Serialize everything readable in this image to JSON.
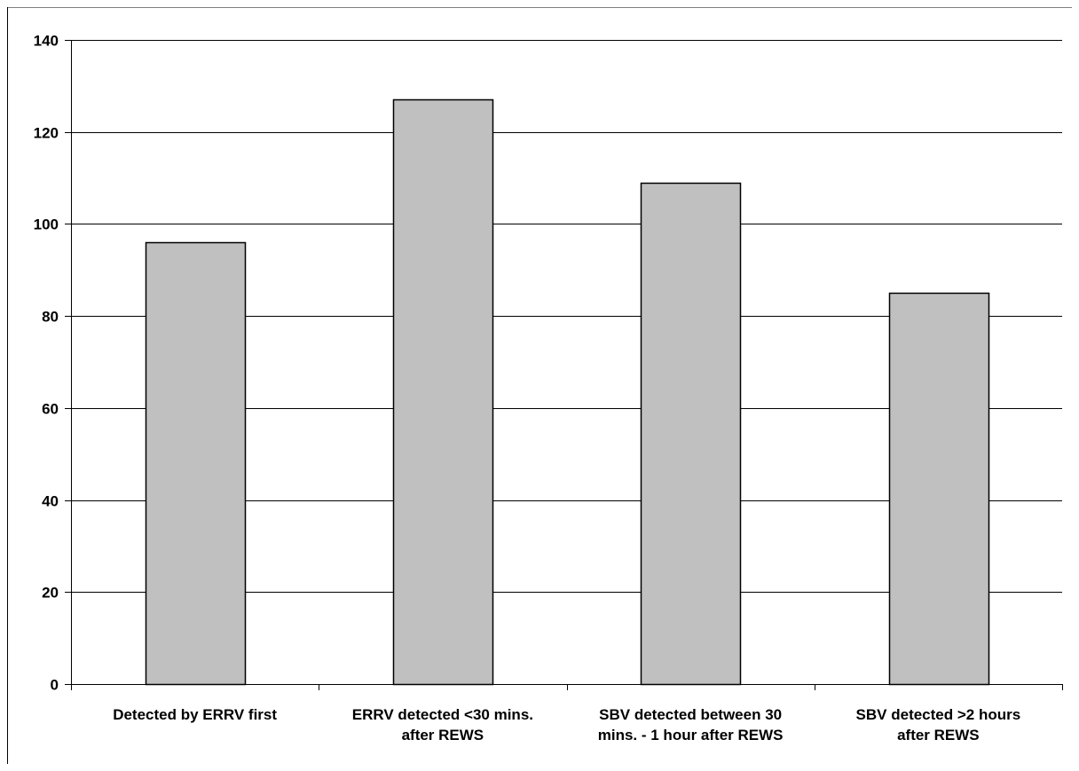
{
  "chart_data": {
    "type": "bar",
    "title": "",
    "xlabel": "",
    "ylabel": "",
    "categories": [
      [
        "Detected by ERRV first"
      ],
      [
        "ERRV detected <30 mins.",
        "after REWS"
      ],
      [
        "SBV detected between 30",
        "mins. - 1 hour after REWS"
      ],
      [
        "SBV detected >2 hours",
        "after REWS"
      ]
    ],
    "values": [
      96,
      127,
      109,
      85
    ],
    "ylim": [
      0,
      140
    ],
    "yticks": [
      0,
      20,
      40,
      60,
      80,
      100,
      120,
      140
    ],
    "grid": true,
    "legend": "none",
    "colors": {
      "bar_fill": "#c0c0c0",
      "bar_stroke": "#000000",
      "grid": "#000000",
      "axis": "#000000"
    }
  }
}
